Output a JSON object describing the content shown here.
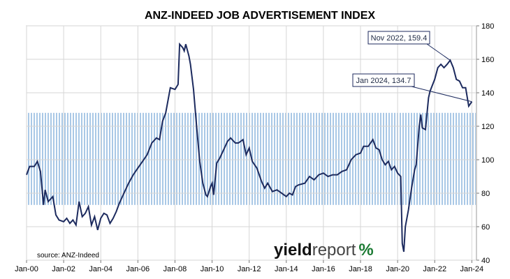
{
  "chart_data": {
    "type": "line",
    "title": "ANZ-INDEED JOB ADVERTISEMENT INDEX",
    "source": "source: ANZ-Indeed",
    "logo": {
      "part1": "yield",
      "part2": "report",
      "part3": "%"
    },
    "x_ticks": [
      "Jan-00",
      "Jan-02",
      "Jan-04",
      "Jan-06",
      "Jan-08",
      "Jan-10",
      "Jan-12",
      "Jan-14",
      "Jan-16",
      "Jan-18",
      "Jan-20",
      "Jan-22",
      "Jan-24"
    ],
    "y_ticks": [
      "40",
      "60",
      "80",
      "100",
      "120",
      "140",
      "160",
      "180"
    ],
    "ylim": [
      40,
      180
    ],
    "xlim": [
      "2000-01",
      "2024-04"
    ],
    "band": {
      "from": 73,
      "to": 128,
      "color": "#a9c8e6"
    },
    "line_color": "#1c2a5e",
    "grid": "vertical and horizontal, light grey",
    "annotations": [
      {
        "label": "Nov 2022, 159.4",
        "x": "2022-11",
        "y": 159.4
      },
      {
        "label": "Jan 2024, 134.7",
        "x": "2024-01",
        "y": 134.7
      }
    ],
    "series": [
      {
        "values": [
          [
            "2000-01",
            91
          ],
          [
            "2000-03",
            96
          ],
          [
            "2000-06",
            96
          ],
          [
            "2000-08",
            99
          ],
          [
            "2000-10",
            93
          ],
          [
            "2000-12",
            73
          ],
          [
            "2001-01",
            82
          ],
          [
            "2001-03",
            75
          ],
          [
            "2001-06",
            78
          ],
          [
            "2001-08",
            67
          ],
          [
            "2001-10",
            64
          ],
          [
            "2002-01",
            63
          ],
          [
            "2002-03",
            65
          ],
          [
            "2002-05",
            62
          ],
          [
            "2002-07",
            64
          ],
          [
            "2002-09",
            61
          ],
          [
            "2002-11",
            75
          ],
          [
            "2003-01",
            66
          ],
          [
            "2003-03",
            68
          ],
          [
            "2003-05",
            72
          ],
          [
            "2003-07",
            61
          ],
          [
            "2003-09",
            66
          ],
          [
            "2003-11",
            58
          ],
          [
            "2004-01",
            65
          ],
          [
            "2004-03",
            68
          ],
          [
            "2004-05",
            67
          ],
          [
            "2004-07",
            62
          ],
          [
            "2004-09",
            65
          ],
          [
            "2004-11",
            69
          ],
          [
            "2005-01",
            74
          ],
          [
            "2005-04",
            80
          ],
          [
            "2005-07",
            86
          ],
          [
            "2005-10",
            91
          ],
          [
            "2006-01",
            95
          ],
          [
            "2006-04",
            99
          ],
          [
            "2006-07",
            103
          ],
          [
            "2006-10",
            110
          ],
          [
            "2007-01",
            113
          ],
          [
            "2007-03",
            112
          ],
          [
            "2007-05",
            123
          ],
          [
            "2007-07",
            128
          ],
          [
            "2007-08",
            133
          ],
          [
            "2007-10",
            143
          ],
          [
            "2008-01",
            142
          ],
          [
            "2008-03",
            145
          ],
          [
            "2008-04",
            169
          ],
          [
            "2008-06",
            167
          ],
          [
            "2008-07",
            165
          ],
          [
            "2008-08",
            169
          ],
          [
            "2008-10",
            162
          ],
          [
            "2008-11",
            157
          ],
          [
            "2009-01",
            142
          ],
          [
            "2009-03",
            120
          ],
          [
            "2009-05",
            99
          ],
          [
            "2009-07",
            86
          ],
          [
            "2009-09",
            79
          ],
          [
            "2009-10",
            78
          ],
          [
            "2009-12",
            84
          ],
          [
            "2010-01",
            86
          ],
          [
            "2010-02",
            79
          ],
          [
            "2010-04",
            98
          ],
          [
            "2010-06",
            101
          ],
          [
            "2010-09",
            107
          ],
          [
            "2010-11",
            111
          ],
          [
            "2011-01",
            113
          ],
          [
            "2011-04",
            110
          ],
          [
            "2011-06",
            110
          ],
          [
            "2011-09",
            112
          ],
          [
            "2011-11",
            103
          ],
          [
            "2012-01",
            107
          ],
          [
            "2012-03",
            99
          ],
          [
            "2012-06",
            95
          ],
          [
            "2012-09",
            87
          ],
          [
            "2012-11",
            83
          ],
          [
            "2013-01",
            86
          ],
          [
            "2013-04",
            81
          ],
          [
            "2013-07",
            82
          ],
          [
            "2013-10",
            80
          ],
          [
            "2014-01",
            78
          ],
          [
            "2014-03",
            80
          ],
          [
            "2014-05",
            79
          ],
          [
            "2014-07",
            84
          ],
          [
            "2014-09",
            85
          ],
          [
            "2015-01",
            86
          ],
          [
            "2015-04",
            90
          ],
          [
            "2015-07",
            88
          ],
          [
            "2015-10",
            91
          ],
          [
            "2016-01",
            92
          ],
          [
            "2016-04",
            90
          ],
          [
            "2016-07",
            91
          ],
          [
            "2016-10",
            91
          ],
          [
            "2017-01",
            93
          ],
          [
            "2017-04",
            94
          ],
          [
            "2017-07",
            100
          ],
          [
            "2017-10",
            103
          ],
          [
            "2018-01",
            104
          ],
          [
            "2018-03",
            108
          ],
          [
            "2018-06",
            108
          ],
          [
            "2018-09",
            112
          ],
          [
            "2018-11",
            107
          ],
          [
            "2019-01",
            106
          ],
          [
            "2019-03",
            100
          ],
          [
            "2019-05",
            97
          ],
          [
            "2019-07",
            99
          ],
          [
            "2019-09",
            94
          ],
          [
            "2019-11",
            96
          ],
          [
            "2020-01",
            92
          ],
          [
            "2020-03",
            90
          ],
          [
            "2020-04",
            50
          ],
          [
            "2020-05",
            45
          ],
          [
            "2020-06",
            60
          ],
          [
            "2020-08",
            70
          ],
          [
            "2020-10",
            83
          ],
          [
            "2020-12",
            94
          ],
          [
            "2021-01",
            97
          ],
          [
            "2021-03",
            120
          ],
          [
            "2021-04",
            127
          ],
          [
            "2021-05",
            119
          ],
          [
            "2021-07",
            118
          ],
          [
            "2021-09",
            137
          ],
          [
            "2021-10",
            141
          ],
          [
            "2022-01",
            148
          ],
          [
            "2022-03",
            155
          ],
          [
            "2022-05",
            157
          ],
          [
            "2022-07",
            155
          ],
          [
            "2022-09",
            157
          ],
          [
            "2022-11",
            159.4
          ],
          [
            "2023-01",
            155
          ],
          [
            "2023-03",
            148
          ],
          [
            "2023-05",
            147
          ],
          [
            "2023-07",
            143
          ],
          [
            "2023-09",
            143
          ],
          [
            "2023-11",
            132
          ],
          [
            "2024-01",
            134.7
          ]
        ]
      }
    ]
  }
}
